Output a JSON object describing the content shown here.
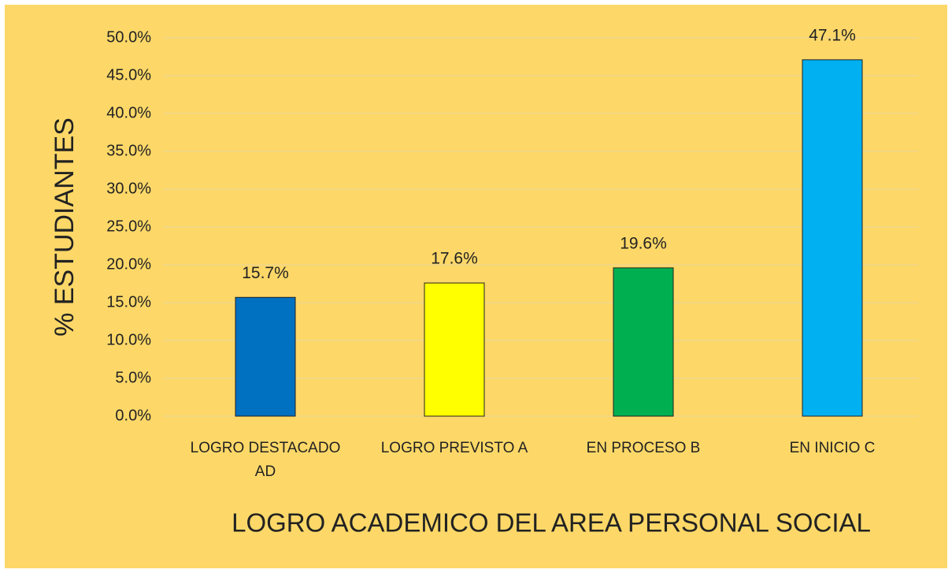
{
  "chart_data": {
    "type": "bar",
    "categories": [
      "LOGRO DESTACADO AD",
      "LOGRO PREVISTO A",
      "EN PROCESO B",
      "EN INICIO C"
    ],
    "values": [
      15.7,
      17.6,
      19.6,
      47.1
    ],
    "value_labels": [
      "15.7%",
      "17.6%",
      "19.6%",
      "47.1%"
    ],
    "colors": [
      "#0070c0",
      "#ffff00",
      "#00b050",
      "#00b0f0"
    ],
    "xlabel": "LOGRO ACADEMICO DEL AREA PERSONAL SOCIAL",
    "ylabel": "% ESTUDIANTES",
    "ylim": [
      0,
      50
    ],
    "yticks": [
      {
        "value": 0,
        "label": "0.0%"
      },
      {
        "value": 5,
        "label": "5.0%"
      },
      {
        "value": 10,
        "label": "10.0%"
      },
      {
        "value": 15,
        "label": "15.0%"
      },
      {
        "value": 20,
        "label": "20.0%"
      },
      {
        "value": 25,
        "label": "25.0%"
      },
      {
        "value": 30,
        "label": "30.0%"
      },
      {
        "value": 35,
        "label": "35.0%"
      },
      {
        "value": 40,
        "label": "40.0%"
      },
      {
        "value": 45,
        "label": "45.0%"
      },
      {
        "value": 50,
        "label": "50.0%"
      }
    ],
    "grid": true
  }
}
